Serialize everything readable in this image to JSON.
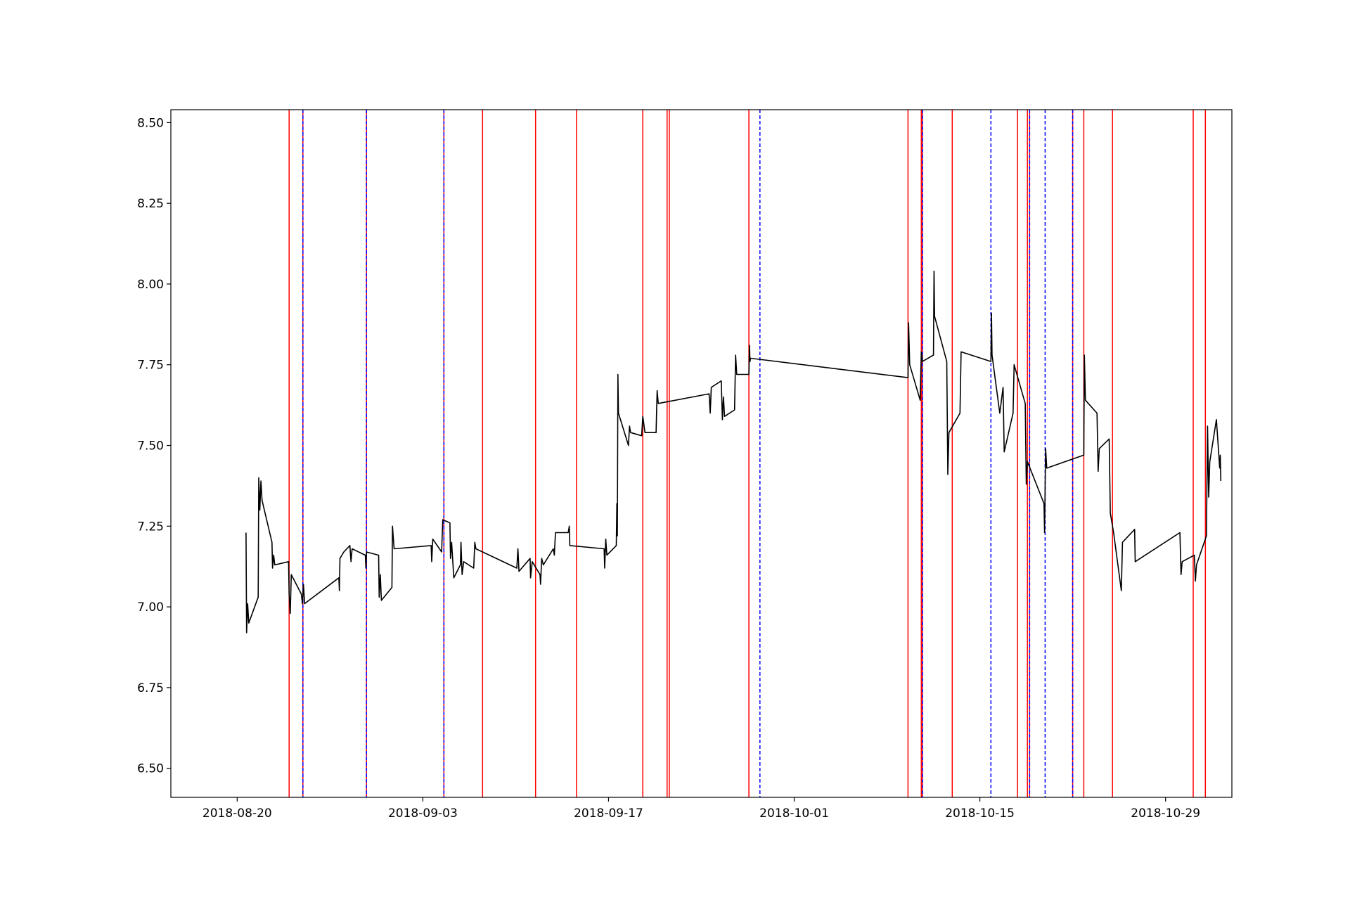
{
  "chart_data": {
    "type": "line",
    "title": "",
    "xlabel": "",
    "ylabel": "",
    "x_axis": {
      "type": "date",
      "range": [
        "2018-08-15",
        "2018-11-03"
      ],
      "ticks": [
        "2018-08-20",
        "2018-09-03",
        "2018-09-17",
        "2018-10-01",
        "2018-10-15",
        "2018-10-29"
      ]
    },
    "y_axis": {
      "range": [
        6.41,
        8.54
      ],
      "ticks": [
        6.5,
        6.75,
        7.0,
        7.25,
        7.5,
        7.75,
        8.0,
        8.25,
        8.5
      ],
      "tick_labels": [
        "6.50",
        "6.75",
        "7.00",
        "7.25",
        "7.50",
        "7.75",
        "8.00",
        "8.25",
        "8.50"
      ]
    },
    "grid": false,
    "legend": "none",
    "series": [
      {
        "color": "#000000",
        "style": "solid",
        "points": [
          [
            "2018-08-20 16:00",
            7.23
          ],
          [
            "2018-08-20 17:00",
            6.92
          ],
          [
            "2018-08-20 19:00",
            7.01
          ],
          [
            "2018-08-20 21:00",
            6.95
          ],
          [
            "2018-08-21 14:00",
            7.03
          ],
          [
            "2018-08-21 15:00",
            7.4
          ],
          [
            "2018-08-21 17:00",
            7.3
          ],
          [
            "2018-08-21 19:00",
            7.39
          ],
          [
            "2018-08-21 21:00",
            7.33
          ],
          [
            "2018-08-22 15:00",
            7.2
          ],
          [
            "2018-08-22 16:00",
            7.12
          ],
          [
            "2018-08-22 18:00",
            7.16
          ],
          [
            "2018-08-22 20:00",
            7.13
          ],
          [
            "2018-08-23 21:00",
            7.14
          ],
          [
            "2018-08-23 22:00",
            7.04
          ],
          [
            "2018-08-24 00:00",
            6.98
          ],
          [
            "2018-08-24 02:00",
            7.1
          ],
          [
            "2018-08-24 20:00",
            7.04
          ],
          [
            "2018-08-24 22:00",
            7.01
          ],
          [
            "2018-08-25 00:00",
            7.07
          ],
          [
            "2018-08-25 02:00",
            7.01
          ],
          [
            "2018-08-27 16:00",
            7.09
          ],
          [
            "2018-08-27 17:00",
            7.05
          ],
          [
            "2018-08-27 18:00",
            7.15
          ],
          [
            "2018-08-28 01:00",
            7.17
          ],
          [
            "2018-08-28 12:00",
            7.19
          ],
          [
            "2018-08-28 14:00",
            7.14
          ],
          [
            "2018-08-28 16:00",
            7.18
          ],
          [
            "2018-08-29 16:00",
            7.16
          ],
          [
            "2018-08-29 17:00",
            7.12
          ],
          [
            "2018-08-29 18:00",
            7.17
          ],
          [
            "2018-08-30 16:00",
            7.16
          ],
          [
            "2018-08-30 17:00",
            7.03
          ],
          [
            "2018-08-30 19:00",
            7.1
          ],
          [
            "2018-08-30 21:00",
            7.02
          ],
          [
            "2018-08-31 16:00",
            7.06
          ],
          [
            "2018-08-31 17:00",
            7.25
          ],
          [
            "2018-08-31 20:00",
            7.18
          ],
          [
            "2018-09-03 15:00",
            7.19
          ],
          [
            "2018-09-03 16:00",
            7.14
          ],
          [
            "2018-09-03 18:00",
            7.21
          ],
          [
            "2018-09-04 10:00",
            7.17
          ],
          [
            "2018-09-04 12:00",
            7.27
          ],
          [
            "2018-09-05 01:00",
            7.26
          ],
          [
            "2018-09-05 02:00",
            7.15
          ],
          [
            "2018-09-05 04:00",
            7.2
          ],
          [
            "2018-09-05 08:00",
            7.09
          ],
          [
            "2018-09-05 20:00",
            7.13
          ],
          [
            "2018-09-05 21:00",
            7.2
          ],
          [
            "2018-09-05 23:00",
            7.1
          ],
          [
            "2018-09-06 02:00",
            7.14
          ],
          [
            "2018-09-06 20:00",
            7.12
          ],
          [
            "2018-09-06 22:00",
            7.2
          ],
          [
            "2018-09-07 00:00",
            7.18
          ],
          [
            "2018-09-10 02:00",
            7.12
          ],
          [
            "2018-09-10 04:00",
            7.18
          ],
          [
            "2018-09-10 06:00",
            7.11
          ],
          [
            "2018-09-11 02:00",
            7.15
          ],
          [
            "2018-09-11 03:00",
            7.09
          ],
          [
            "2018-09-11 06:00",
            7.14
          ],
          [
            "2018-09-11 20:00",
            7.1
          ],
          [
            "2018-09-11 21:00",
            7.07
          ],
          [
            "2018-09-11 23:00",
            7.15
          ],
          [
            "2018-09-12 02:00",
            7.13
          ],
          [
            "2018-09-12 20:00",
            7.18
          ],
          [
            "2018-09-12 22:00",
            7.16
          ],
          [
            "2018-09-13 00:00",
            7.23
          ],
          [
            "2018-09-13 23:00",
            7.23
          ],
          [
            "2018-09-14 01:00",
            7.25
          ],
          [
            "2018-09-14 02:00",
            7.19
          ],
          [
            "2018-09-16 16:00",
            7.18
          ],
          [
            "2018-09-16 17:00",
            7.12
          ],
          [
            "2018-09-16 19:00",
            7.21
          ],
          [
            "2018-09-16 21:00",
            7.16
          ],
          [
            "2018-09-17 14:00",
            7.19
          ],
          [
            "2018-09-17 15:00",
            7.32
          ],
          [
            "2018-09-17 16:00",
            7.22
          ],
          [
            "2018-09-17 17:00",
            7.72
          ],
          [
            "2018-09-17 18:00",
            7.6
          ],
          [
            "2018-09-18 12:00",
            7.5
          ],
          [
            "2018-09-18 14:00",
            7.56
          ],
          [
            "2018-09-18 16:00",
            7.54
          ],
          [
            "2018-09-19 12:00",
            7.53
          ],
          [
            "2018-09-19 14:00",
            7.59
          ],
          [
            "2018-09-19 18:00",
            7.54
          ],
          [
            "2018-09-20 14:00",
            7.54
          ],
          [
            "2018-09-20 16:00",
            7.67
          ],
          [
            "2018-09-20 18:00",
            7.63
          ],
          [
            "2018-09-24 14:00",
            7.66
          ],
          [
            "2018-09-24 16:00",
            7.6
          ],
          [
            "2018-09-24 18:00",
            7.68
          ],
          [
            "2018-09-25 12:00",
            7.7
          ],
          [
            "2018-09-25 14:00",
            7.58
          ],
          [
            "2018-09-25 16:00",
            7.65
          ],
          [
            "2018-09-25 18:00",
            7.59
          ],
          [
            "2018-09-26 12:00",
            7.61
          ],
          [
            "2018-09-26 14:00",
            7.78
          ],
          [
            "2018-09-26 16:00",
            7.72
          ],
          [
            "2018-09-27 14:00",
            7.72
          ],
          [
            "2018-09-27 15:00",
            7.81
          ],
          [
            "2018-09-27 16:00",
            7.76
          ],
          [
            "2018-09-27 17:00",
            7.77
          ],
          [
            "2018-10-09 14:00",
            7.71
          ],
          [
            "2018-10-09 15:00",
            7.88
          ],
          [
            "2018-10-09 17:00",
            7.75
          ],
          [
            "2018-10-10 12:00",
            7.64
          ],
          [
            "2018-10-10 14:00",
            7.79
          ],
          [
            "2018-10-10 16:00",
            7.76
          ],
          [
            "2018-10-11 12:00",
            7.78
          ],
          [
            "2018-10-11 13:00",
            8.04
          ],
          [
            "2018-10-11 14:00",
            7.9
          ],
          [
            "2018-10-12 12:00",
            7.76
          ],
          [
            "2018-10-12 14:00",
            7.41
          ],
          [
            "2018-10-12 16:00",
            7.54
          ],
          [
            "2018-10-13 12:00",
            7.6
          ],
          [
            "2018-10-13 14:00",
            7.79
          ],
          [
            "2018-10-15 20:00",
            7.76
          ],
          [
            "2018-10-15 21:00",
            7.91
          ],
          [
            "2018-10-15 22:00",
            7.78
          ],
          [
            "2018-10-16 12:00",
            7.6
          ],
          [
            "2018-10-16 18:00",
            7.68
          ],
          [
            "2018-10-16 20:00",
            7.48
          ],
          [
            "2018-10-17 12:00",
            7.6
          ],
          [
            "2018-10-17 14:00",
            7.75
          ],
          [
            "2018-10-18 10:00",
            7.63
          ],
          [
            "2018-10-18 12:00",
            7.38
          ],
          [
            "2018-10-18 14:00",
            7.45
          ],
          [
            "2018-10-19 20:00",
            7.32
          ],
          [
            "2018-10-19 21:00",
            7.23
          ],
          [
            "2018-10-19 23:00",
            7.49
          ],
          [
            "2018-10-20 01:00",
            7.43
          ],
          [
            "2018-10-22 20:00",
            7.47
          ],
          [
            "2018-10-22 21:00",
            7.78
          ],
          [
            "2018-10-22 23:00",
            7.64
          ],
          [
            "2018-10-23 20:00",
            7.6
          ],
          [
            "2018-10-23 22:00",
            7.42
          ],
          [
            "2018-10-24 00:00",
            7.49
          ],
          [
            "2018-10-24 18:00",
            7.52
          ],
          [
            "2018-10-24 20:00",
            7.29
          ],
          [
            "2018-10-25 02:00",
            7.23
          ],
          [
            "2018-10-25 16:00",
            7.05
          ],
          [
            "2018-10-25 18:00",
            7.2
          ],
          [
            "2018-10-26 16:00",
            7.24
          ],
          [
            "2018-10-26 17:00",
            7.14
          ],
          [
            "2018-10-30 02:00",
            7.23
          ],
          [
            "2018-10-30 04:00",
            7.1
          ],
          [
            "2018-10-30 06:00",
            7.14
          ],
          [
            "2018-10-31 04:00",
            7.16
          ],
          [
            "2018-10-31 06:00",
            7.08
          ],
          [
            "2018-10-31 08:00",
            7.13
          ],
          [
            "2018-11-01 02:00",
            7.22
          ],
          [
            "2018-11-01 04:00",
            7.56
          ],
          [
            "2018-11-01 06:00",
            7.34
          ],
          [
            "2018-11-01 08:00",
            7.45
          ],
          [
            "2018-11-01 20:00",
            7.58
          ],
          [
            "2018-11-02 02:00",
            7.43
          ],
          [
            "2018-11-02 03:00",
            7.47
          ],
          [
            "2018-11-02 04:00",
            7.39
          ]
        ]
      }
    ],
    "vertical_lines": [
      {
        "style": "solid",
        "color": "#ff0000",
        "x": [
          "2018-08-23 22:00",
          "2018-08-24 23:00",
          "2018-08-29 18:00",
          "2018-09-04 14:00",
          "2018-09-07 12:00",
          "2018-09-11 12:00",
          "2018-09-14 14:00",
          "2018-09-19 14:00",
          "2018-09-21 10:00",
          "2018-09-21 14:00",
          "2018-09-27 14:00",
          "2018-10-09 14:00",
          "2018-10-10 14:00",
          "2018-10-10 16:00",
          "2018-10-12 22:00",
          "2018-10-17 20:00",
          "2018-10-18 14:00",
          "2018-10-18 18:00",
          "2018-10-22 00:00",
          "2018-10-22 20:00",
          "2018-10-25 00:00",
          "2018-10-31 02:00",
          "2018-11-01 00:00"
        ]
      },
      {
        "style": "dashed",
        "color": "#0000ff",
        "x": [
          "2018-08-24 23:00",
          "2018-08-29 18:00",
          "2018-09-04 14:00",
          "2018-09-28 10:00",
          "2018-10-10 16:00",
          "2018-10-15 20:00",
          "2018-10-18 18:00",
          "2018-10-19 22:00",
          "2018-10-22 00:00"
        ]
      }
    ]
  }
}
